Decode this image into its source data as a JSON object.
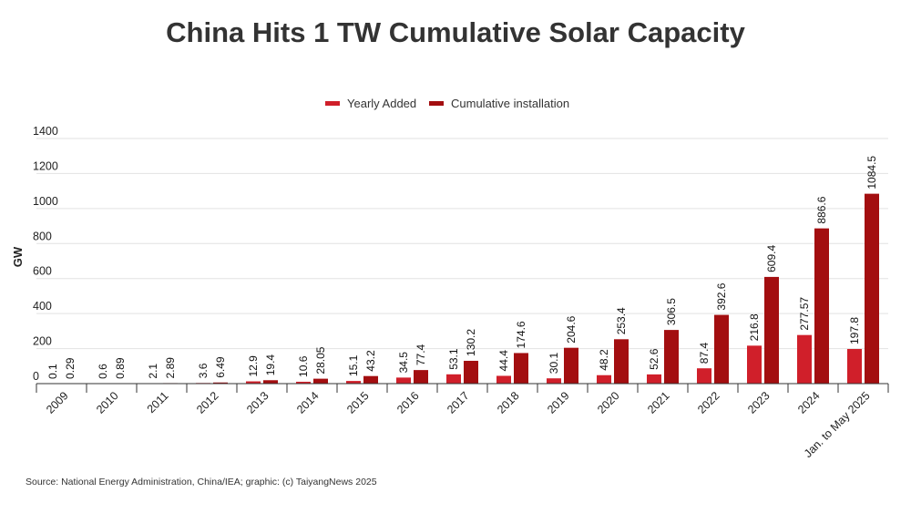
{
  "chart_data": {
    "type": "bar",
    "title": "China Hits 1 TW Cumulative Solar Capacity",
    "ylabel": "GW",
    "xlabel": "",
    "ylim": [
      0,
      1400
    ],
    "yticks": [
      0,
      200,
      400,
      600,
      800,
      1000,
      1200,
      1400
    ],
    "grid": true,
    "legend_position": "top-center",
    "categories": [
      "2009",
      "2010",
      "2011",
      "2012",
      "2013",
      "2014",
      "2015",
      "2016",
      "2017",
      "2018",
      "2019",
      "2020",
      "2021",
      "2022",
      "2023",
      "2024",
      "Jan. to May 2025"
    ],
    "series": [
      {
        "name": "Yearly Added",
        "color": "#d01f2a",
        "values": [
          0.1,
          0.6,
          2.1,
          3.6,
          12.9,
          10.6,
          15.1,
          34.5,
          53.1,
          44.4,
          30.1,
          48.2,
          52.6,
          87.4,
          216.8,
          277.57,
          197.8
        ],
        "labels": [
          "0.1",
          "0.6",
          "2.1",
          "3.6",
          "12.9",
          "10.6",
          "15.1",
          "34.5",
          "53.1",
          "44.4",
          "30.1",
          "48.2",
          "52.6",
          "87.4",
          "216.8",
          "277.57",
          "197.8"
        ]
      },
      {
        "name": "Cumulative installation",
        "color": "#a30e10",
        "values": [
          0.29,
          0.89,
          2.89,
          6.49,
          19.4,
          28.05,
          43.2,
          77.4,
          130.2,
          174.6,
          204.6,
          253.4,
          306.5,
          392.6,
          609.4,
          886.6,
          1084.5
        ],
        "labels": [
          "0.29",
          "0.89",
          "2.89",
          "6.49",
          "19.4",
          "28.05",
          "43.2",
          "77.4",
          "130.2",
          "174.6",
          "204.6",
          "253.4",
          "306.5",
          "392.6",
          "609.4",
          "886.6",
          "1084.5"
        ]
      }
    ]
  },
  "source": "Source: National Energy Administration, China/IEA; graphic: (c) TaiyangNews 2025"
}
